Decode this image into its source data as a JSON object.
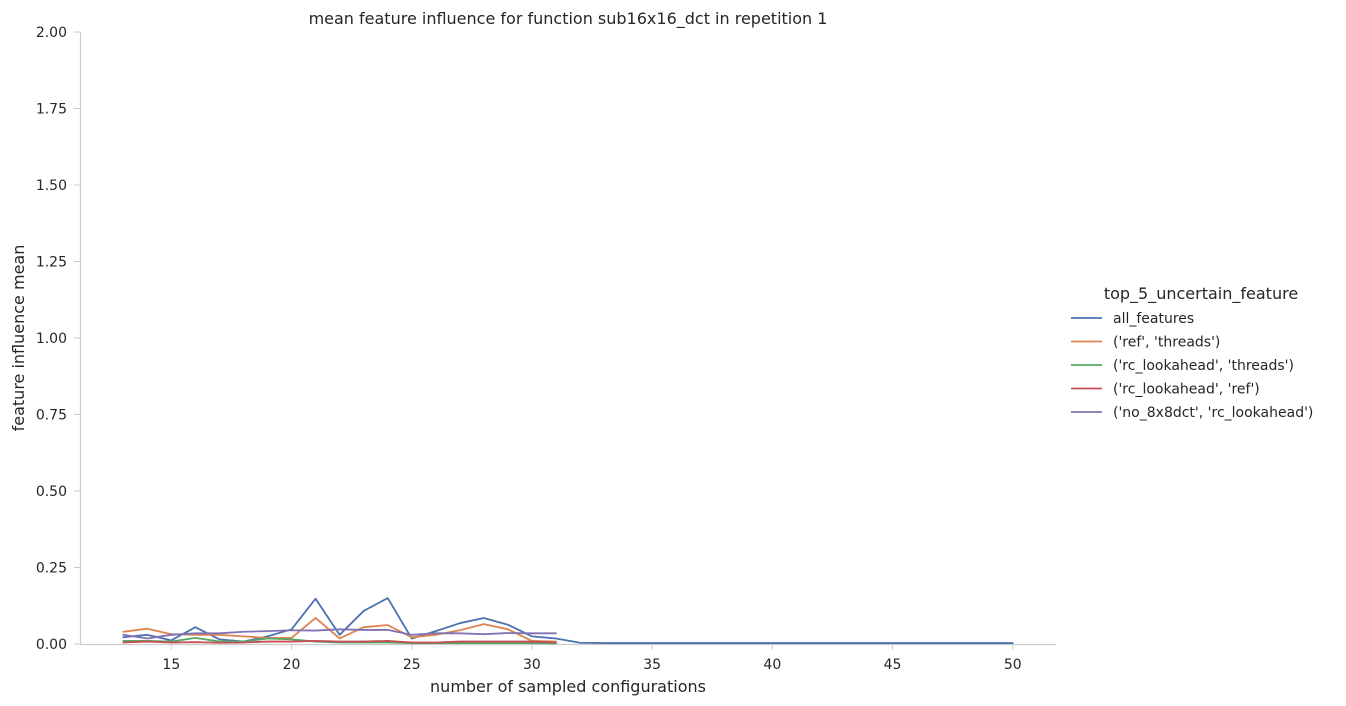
{
  "chart_data": {
    "type": "line",
    "title": "mean feature influence for function sub16x16_dct in repetition 1",
    "xlabel": "number of sampled configurations",
    "ylabel": "feature influence mean",
    "xlim": [
      11.2,
      51.8
    ],
    "ylim": [
      0,
      2.0
    ],
    "xticks": [
      15,
      20,
      25,
      30,
      35,
      40,
      45,
      50
    ],
    "yticks": [
      0.0,
      0.25,
      0.5,
      0.75,
      1.0,
      1.25,
      1.5,
      1.75,
      2.0
    ],
    "ytick_labels": [
      "0.00",
      "0.25",
      "0.50",
      "0.75",
      "1.00",
      "1.25",
      "1.50",
      "1.75",
      "2.00"
    ],
    "grid": false,
    "legend": {
      "title": "top_5_uncertain_feature",
      "placement": "right"
    },
    "series": [
      {
        "name": "all_features",
        "color": "#4c72b0",
        "x": [
          13,
          14,
          15,
          16,
          17,
          18,
          19,
          20,
          21,
          22,
          23,
          24,
          25,
          26,
          27,
          28,
          29,
          30,
          31,
          32,
          33,
          34,
          35,
          36,
          37,
          38,
          39,
          40,
          41,
          42,
          43,
          44,
          45,
          46,
          47,
          48,
          49,
          50
        ],
        "y": [
          0.022,
          0.03,
          0.012,
          0.055,
          0.015,
          0.008,
          0.025,
          0.048,
          0.148,
          0.03,
          0.108,
          0.15,
          0.018,
          0.042,
          0.068,
          0.085,
          0.063,
          0.025,
          0.018,
          0.004,
          0.003,
          0.003,
          0.003,
          0.003,
          0.003,
          0.003,
          0.003,
          0.003,
          0.003,
          0.003,
          0.003,
          0.003,
          0.003,
          0.003,
          0.003,
          0.003,
          0.003,
          0.003
        ]
      },
      {
        "name": "('ref', 'threads')",
        "color": "#dd8452",
        "x": [
          13,
          14,
          15,
          16,
          17,
          18,
          19,
          20,
          21,
          22,
          23,
          24,
          25,
          26,
          27,
          28,
          29,
          30,
          31
        ],
        "y": [
          0.04,
          0.05,
          0.032,
          0.03,
          0.03,
          0.025,
          0.02,
          0.02,
          0.085,
          0.018,
          0.055,
          0.062,
          0.022,
          0.03,
          0.045,
          0.065,
          0.048,
          0.01,
          0.008
        ]
      },
      {
        "name": "('rc_lookahead', 'threads')",
        "color": "#55a868",
        "x": [
          13,
          14,
          15,
          16,
          17,
          18,
          19,
          20,
          21,
          22,
          23,
          24,
          25,
          26,
          27,
          28,
          29,
          30,
          31
        ],
        "y": [
          0.01,
          0.01,
          0.008,
          0.02,
          0.008,
          0.008,
          0.018,
          0.015,
          0.008,
          0.005,
          0.005,
          0.005,
          0.003,
          0.003,
          0.003,
          0.003,
          0.003,
          0.003,
          0.002
        ]
      },
      {
        "name": "('rc_lookahead', 'ref')",
        "color": "#c44e52",
        "x": [
          13,
          14,
          15,
          16,
          17,
          18,
          19,
          20,
          21,
          22,
          23,
          24,
          25,
          26,
          27,
          28,
          29,
          30,
          31
        ],
        "y": [
          0.005,
          0.008,
          0.005,
          0.006,
          0.004,
          0.005,
          0.008,
          0.008,
          0.01,
          0.008,
          0.008,
          0.01,
          0.005,
          0.005,
          0.008,
          0.008,
          0.008,
          0.008,
          0.005
        ]
      },
      {
        "name": "('no_8x8dct', 'rc_lookahead')",
        "color": "#8172b3",
        "x": [
          13,
          14,
          15,
          16,
          17,
          18,
          19,
          20,
          21,
          22,
          23,
          24,
          25,
          26,
          27,
          28,
          29,
          30,
          31
        ],
        "y": [
          0.03,
          0.018,
          0.03,
          0.035,
          0.035,
          0.04,
          0.042,
          0.045,
          0.044,
          0.048,
          0.046,
          0.046,
          0.03,
          0.035,
          0.035,
          0.032,
          0.036,
          0.035,
          0.035
        ]
      }
    ]
  }
}
